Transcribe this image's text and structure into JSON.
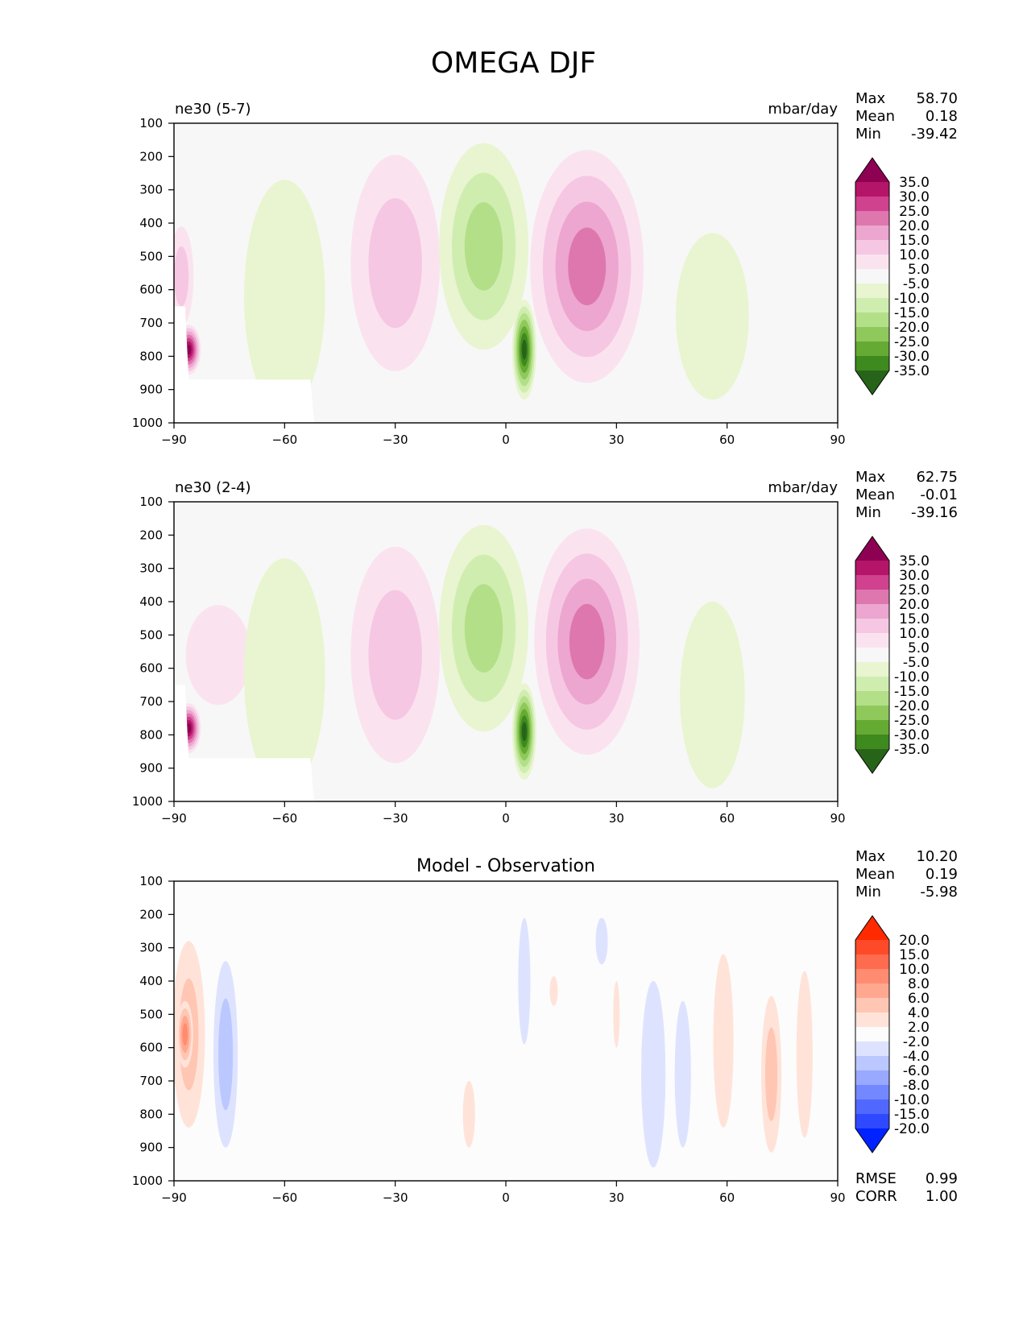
{
  "figure_title": "OMEGA DJF",
  "chart_data": [
    {
      "type": "heatmap",
      "title": "ne30 (5-7)",
      "units": "mbar/day",
      "x_range": [
        -90,
        90
      ],
      "y_range": [
        100,
        1000
      ],
      "y_inverted": true,
      "x_ticks": [
        -90,
        -60,
        -30,
        0,
        30,
        60,
        90
      ],
      "x_tick_labels": [
        "−90",
        "−60",
        "−30",
        "0",
        "30",
        "60",
        "90"
      ],
      "y_ticks": [
        100,
        200,
        300,
        400,
        500,
        600,
        700,
        800,
        900,
        1000
      ],
      "stats": [
        {
          "label": "Max",
          "value": "58.70"
        },
        {
          "label": "Mean",
          "value": "0.18"
        },
        {
          "label": "Min",
          "value": "-39.42"
        }
      ],
      "colorbar": {
        "labels": [
          "35.0",
          "30.0",
          "25.0",
          "20.0",
          "15.0",
          "10.0",
          "5.0",
          "-5.0",
          "-10.0",
          "-15.0",
          "-20.0",
          "-25.0",
          "-30.0",
          "-35.0"
        ],
        "colors": [
          "#8e0152",
          "#b51569",
          "#d0418e",
          "#de77ae",
          "#eca6cf",
          "#f6c7e3",
          "#fae3ef",
          "#f7f7f7",
          "#e8f5d0",
          "#d0edb0",
          "#b3df88",
          "#8fc95b",
          "#65aa33",
          "#3e8a1f",
          "#276419"
        ]
      },
      "features": [
        {
          "lat": -86,
          "p": 780,
          "lon_w": 3,
          "p_h": 150,
          "value": 40
        },
        {
          "lat": -88,
          "p": 560,
          "lon_w": 3,
          "p_h": 300,
          "value": 12
        },
        {
          "lat": -60,
          "p": 620,
          "lon_w": 10,
          "p_h": 700,
          "value": -8
        },
        {
          "lat": -30,
          "p": 520,
          "lon_w": 11,
          "p_h": 650,
          "value": 12
        },
        {
          "lat": -6,
          "p": 470,
          "lon_w": 11,
          "p_h": 620,
          "value": -16
        },
        {
          "lat": 5,
          "p": 780,
          "lon_w": 3,
          "p_h": 300,
          "value": -35
        },
        {
          "lat": 22,
          "p": 530,
          "lon_w": 14,
          "p_h": 700,
          "value": 24
        },
        {
          "lat": 56,
          "p": 680,
          "lon_w": 9,
          "p_h": 500,
          "value": -7
        }
      ]
    },
    {
      "type": "heatmap",
      "title": "ne30 (2-4)",
      "units": "mbar/day",
      "x_range": [
        -90,
        90
      ],
      "y_range": [
        100,
        1000
      ],
      "y_inverted": true,
      "x_ticks": [
        -90,
        -60,
        -30,
        0,
        30,
        60,
        90
      ],
      "x_tick_labels": [
        "−90",
        "−60",
        "−30",
        "0",
        "30",
        "60",
        "90"
      ],
      "y_ticks": [
        100,
        200,
        300,
        400,
        500,
        600,
        700,
        800,
        900,
        1000
      ],
      "stats": [
        {
          "label": "Max",
          "value": "62.75"
        },
        {
          "label": "Mean",
          "value": "-0.01"
        },
        {
          "label": "Min",
          "value": "-39.16"
        }
      ],
      "colorbar": {
        "labels": [
          "35.0",
          "30.0",
          "25.0",
          "20.0",
          "15.0",
          "10.0",
          "5.0",
          "-5.0",
          "-10.0",
          "-15.0",
          "-20.0",
          "-25.0",
          "-30.0",
          "-35.0"
        ],
        "colors": [
          "#8e0152",
          "#b51569",
          "#d0418e",
          "#de77ae",
          "#eca6cf",
          "#f6c7e3",
          "#fae3ef",
          "#f7f7f7",
          "#e8f5d0",
          "#d0edb0",
          "#b3df88",
          "#8fc95b",
          "#65aa33",
          "#3e8a1f",
          "#276419"
        ]
      },
      "features": [
        {
          "lat": -86,
          "p": 780,
          "lon_w": 3,
          "p_h": 150,
          "value": 40
        },
        {
          "lat": -78,
          "p": 560,
          "lon_w": 8,
          "p_h": 300,
          "value": 7
        },
        {
          "lat": -60,
          "p": 620,
          "lon_w": 10,
          "p_h": 700,
          "value": -8
        },
        {
          "lat": -30,
          "p": 560,
          "lon_w": 11,
          "p_h": 650,
          "value": 12
        },
        {
          "lat": -6,
          "p": 480,
          "lon_w": 11,
          "p_h": 620,
          "value": -16
        },
        {
          "lat": 5,
          "p": 790,
          "lon_w": 3,
          "p_h": 290,
          "value": -35
        },
        {
          "lat": 22,
          "p": 520,
          "lon_w": 13,
          "p_h": 680,
          "value": 24
        },
        {
          "lat": 56,
          "p": 680,
          "lon_w": 8,
          "p_h": 560,
          "value": -8
        }
      ]
    },
    {
      "type": "heatmap",
      "title": "Model - Observation",
      "units": "",
      "x_range": [
        -90,
        90
      ],
      "y_range": [
        100,
        1000
      ],
      "y_inverted": true,
      "x_ticks": [
        -90,
        -60,
        -30,
        0,
        30,
        60,
        90
      ],
      "x_tick_labels": [
        "−90",
        "−60",
        "−30",
        "0",
        "30",
        "60",
        "90"
      ],
      "y_ticks": [
        100,
        200,
        300,
        400,
        500,
        600,
        700,
        800,
        900,
        1000
      ],
      "stats": [
        {
          "label": "Max",
          "value": "10.20"
        },
        {
          "label": "Mean",
          "value": "0.19"
        },
        {
          "label": "Min",
          "value": "-5.98"
        }
      ],
      "footer_stats": [
        {
          "label": "RMSE",
          "value": "0.99"
        },
        {
          "label": "CORR",
          "value": "1.00"
        }
      ],
      "colorbar": {
        "labels": [
          "20.0",
          "15.0",
          "10.0",
          "8.0",
          "6.0",
          "4.0",
          "2.0",
          "-2.0",
          "-4.0",
          "-6.0",
          "-8.0",
          "-10.0",
          "-15.0",
          "-20.0"
        ],
        "colors": [
          "#ff2a00",
          "#ff4a2a",
          "#ff6b4f",
          "#ff8c70",
          "#ffa88f",
          "#ffc6b3",
          "#ffe3d9",
          "#fcfcfc",
          "#dde3ff",
          "#bac8ff",
          "#98a9ff",
          "#7388ff",
          "#5168ff",
          "#2e49ff",
          "#0022ff"
        ]
      },
      "features": [
        {
          "lat": -86,
          "p": 560,
          "lon_w": 4,
          "p_h": 560,
          "value": 5
        },
        {
          "lat": -87,
          "p": 560,
          "lon_w": 2,
          "p_h": 200,
          "value": 8
        },
        {
          "lat": -76,
          "p": 620,
          "lon_w": 3,
          "p_h": 560,
          "value": -4
        },
        {
          "lat": 5,
          "p": 400,
          "lon_w": 1.5,
          "p_h": 380,
          "value": -3
        },
        {
          "lat": 26,
          "p": 280,
          "lon_w": 1.5,
          "p_h": 140,
          "value": -3
        },
        {
          "lat": 13,
          "p": 430,
          "lon_w": 1,
          "p_h": 90,
          "value": 3
        },
        {
          "lat": -10,
          "p": 800,
          "lon_w": 1.5,
          "p_h": 200,
          "value": 3
        },
        {
          "lat": 40,
          "p": 680,
          "lon_w": 3,
          "p_h": 560,
          "value": -3
        },
        {
          "lat": 48,
          "p": 680,
          "lon_w": 2,
          "p_h": 440,
          "value": -3
        },
        {
          "lat": 59,
          "p": 580,
          "lon_w": 2.5,
          "p_h": 520,
          "value": 3
        },
        {
          "lat": 72,
          "p": 680,
          "lon_w": 2.5,
          "p_h": 470,
          "value": 4
        },
        {
          "lat": 81,
          "p": 620,
          "lon_w": 2,
          "p_h": 500,
          "value": 3
        },
        {
          "lat": 30,
          "p": 500,
          "lon_w": 0.8,
          "p_h": 200,
          "value": 3
        }
      ]
    }
  ]
}
